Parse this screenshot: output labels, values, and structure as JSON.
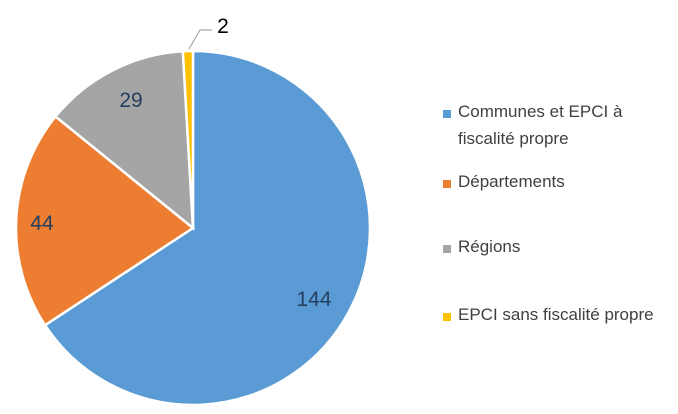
{
  "chart_data": {
    "type": "pie",
    "categories": [
      "Communes et EPCI à fiscalité propre",
      "Départements",
      "Régions",
      "EPCI sans fiscalité propre"
    ],
    "values": [
      144,
      44,
      29,
      2
    ],
    "colors": [
      "#5b9bd5",
      "#ed7d31",
      "#a5a5a5",
      "#ffc000"
    ],
    "label_text_color": "#243f60",
    "start_angle_deg": 0,
    "direction": "clockwise",
    "legend_position": "right",
    "title": ""
  },
  "legend": {
    "items": [
      {
        "label": "Communes et EPCI à fiscalité propre",
        "color": "#5b9bd5"
      },
      {
        "label": "Départements",
        "color": "#ed7d31"
      },
      {
        "label": "Régions",
        "color": "#a5a5a5"
      },
      {
        "label": "EPCI sans fiscalité propre",
        "color": "#ffc000"
      }
    ]
  },
  "labels": [
    "144",
    "44",
    "29",
    "2"
  ]
}
